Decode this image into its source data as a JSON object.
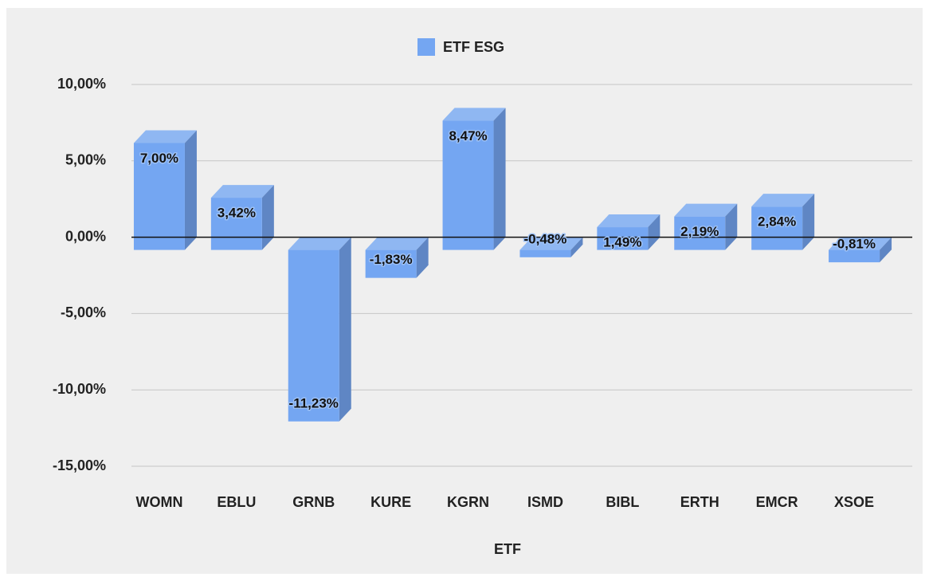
{
  "chart_data": {
    "type": "bar3d",
    "legend": "ETF ESG",
    "x_label": "ETF",
    "color": "#74a6f2",
    "categories": [
      "WOMN",
      "EBLU",
      "GRNB",
      "KURE",
      "KGRN",
      "ISMD",
      "BIBL",
      "ERTH",
      "EMCR",
      "XSOE"
    ],
    "values": [
      7.0,
      3.42,
      -11.23,
      -1.83,
      8.47,
      -0.48,
      1.49,
      2.19,
      2.84,
      -0.81
    ],
    "value_labels": [
      "7,00%",
      "3,42%",
      "-11,23%",
      "-1,83%",
      "8,47%",
      "-0,48%",
      "1,49%",
      "2,19%",
      "2,84%",
      "-0,81%"
    ],
    "ylim": [
      -15,
      10
    ],
    "yticks": [
      {
        "value": -15,
        "label": "-15,00%"
      },
      {
        "value": -10,
        "label": "-10,00%"
      },
      {
        "value": -5,
        "label": "-5,00%"
      },
      {
        "value": 0,
        "label": "0,00%"
      },
      {
        "value": 5,
        "label": "5,00%"
      },
      {
        "value": 10,
        "label": "10,00%"
      }
    ],
    "grid": true
  }
}
